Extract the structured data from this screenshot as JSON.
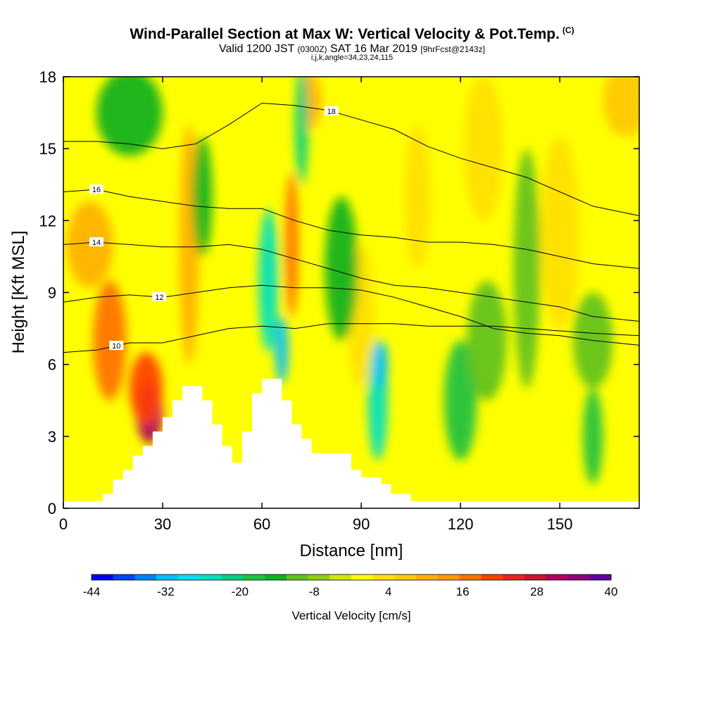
{
  "header": {
    "title": "Wind-Parallel Section at Max W: Vertical Velocity & Pot.Temp.",
    "copyright": "(C)",
    "valid_prefix": "Valid 1200 JST",
    "valid_utc": "(0300Z)",
    "valid_date": "SAT 16 Mar 2019",
    "forecast_info": "[9hrFcst@2143z]",
    "params": "i,j,k,angle=34,23,24,115"
  },
  "chart_data": {
    "type": "heatmap",
    "xlabel": "Distance [nm]",
    "ylabel": "Height [Kft MSL]",
    "xlim": [
      0,
      174
    ],
    "ylim": [
      0,
      18
    ],
    "x_ticks": [
      "0",
      "30",
      "60",
      "90",
      "120",
      "150"
    ],
    "y_ticks": [
      "0",
      "3",
      "6",
      "9",
      "12",
      "15",
      "18"
    ],
    "colorbar": {
      "title": "Vertical Velocity [cm/s]",
      "min": -44,
      "max": 40,
      "step": 4,
      "tick_labels": [
        "-44",
        "-32",
        "-20",
        "-8",
        "4",
        "16",
        "28",
        "40"
      ],
      "colors": [
        "#0000ff",
        "#0040ff",
        "#0080ff",
        "#00c0ff",
        "#00e0f0",
        "#00e0c0",
        "#00d080",
        "#20c040",
        "#10b020",
        "#60c020",
        "#90d010",
        "#d0e800",
        "#ffff00",
        "#ffe000",
        "#ffc800",
        "#ffb000",
        "#ff9800",
        "#ff7000",
        "#ff4000",
        "#f02020",
        "#d01030",
        "#b00060",
        "#900080",
        "#6000a0"
      ]
    },
    "updrafts": [
      {
        "x": 14,
        "y": 7.0,
        "w": 5,
        "h": 2.5,
        "value": 24
      },
      {
        "x": 8,
        "y": 11.0,
        "w": 7,
        "h": 1.8,
        "value": 16
      },
      {
        "x": 26,
        "y": 4.0,
        "w": 4,
        "h": 1.3,
        "value": 40
      },
      {
        "x": 25,
        "y": 5.0,
        "w": 5,
        "h": 1.5,
        "value": 28
      },
      {
        "x": 38,
        "y": 11.0,
        "w": 3,
        "h": 5.0,
        "value": 16
      },
      {
        "x": 69,
        "y": 11.0,
        "w": 2,
        "h": 3.0,
        "value": 24
      },
      {
        "x": 74,
        "y": 17.0,
        "w": 4,
        "h": 1.2,
        "value": 16
      },
      {
        "x": 170,
        "y": 17.0,
        "w": 7,
        "h": 1.5,
        "value": 12
      },
      {
        "x": 150,
        "y": 11.5,
        "w": 6,
        "h": 4.0,
        "value": 8
      },
      {
        "x": 107,
        "y": 13.0,
        "w": 4,
        "h": 3.0,
        "value": 8
      },
      {
        "x": 127,
        "y": 15.0,
        "w": 6,
        "h": 3.0,
        "value": 8
      },
      {
        "x": 90,
        "y": 8.0,
        "w": 4,
        "h": 3.0,
        "value": 8
      }
    ],
    "downdrafts": [
      {
        "x": 20,
        "y": 16.5,
        "w": 10,
        "h": 1.8,
        "value": -12
      },
      {
        "x": 42,
        "y": 13.0,
        "w": 3,
        "h": 2.5,
        "value": -12
      },
      {
        "x": 62,
        "y": 9.5,
        "w": 3,
        "h": 3.0,
        "value": -24
      },
      {
        "x": 66,
        "y": 6.6,
        "w": 2,
        "h": 1.4,
        "value": -32
      },
      {
        "x": 72,
        "y": 16.0,
        "w": 2,
        "h": 2.5,
        "value": -20
      },
      {
        "x": 95,
        "y": 4.5,
        "w": 3,
        "h": 2.5,
        "value": -24
      },
      {
        "x": 96,
        "y": 6.0,
        "w": 2,
        "h": 1.0,
        "value": -32
      },
      {
        "x": 120,
        "y": 4.5,
        "w": 5,
        "h": 2.5,
        "value": -16
      },
      {
        "x": 140,
        "y": 10.0,
        "w": 4,
        "h": 5.0,
        "value": -8
      },
      {
        "x": 160,
        "y": 3.0,
        "w": 3,
        "h": 2.0,
        "value": -16
      },
      {
        "x": 160,
        "y": 7.0,
        "w": 6,
        "h": 2.0,
        "value": -8
      },
      {
        "x": 84,
        "y": 10.0,
        "w": 5,
        "h": 3.0,
        "value": -12
      },
      {
        "x": 128,
        "y": 7.0,
        "w": 6,
        "h": 2.5,
        "value": -8
      }
    ],
    "terrain": [
      [
        0,
        0.3
      ],
      [
        12,
        0.3
      ],
      [
        12,
        0.6
      ],
      [
        15,
        0.6
      ],
      [
        15,
        1.2
      ],
      [
        18,
        1.2
      ],
      [
        18,
        1.6
      ],
      [
        21,
        1.6
      ],
      [
        21,
        2.2
      ],
      [
        24,
        2.2
      ],
      [
        24,
        2.6
      ],
      [
        27,
        2.6
      ],
      [
        27,
        3.2
      ],
      [
        30,
        3.2
      ],
      [
        30,
        3.8
      ],
      [
        33,
        3.8
      ],
      [
        33,
        4.5
      ],
      [
        36,
        4.5
      ],
      [
        36,
        5.1
      ],
      [
        42,
        5.1
      ],
      [
        42,
        4.5
      ],
      [
        45,
        4.5
      ],
      [
        45,
        3.5
      ],
      [
        48,
        3.5
      ],
      [
        48,
        2.6
      ],
      [
        51,
        2.6
      ],
      [
        51,
        1.9
      ],
      [
        54,
        1.9
      ],
      [
        54,
        3.2
      ],
      [
        57,
        3.2
      ],
      [
        57,
        4.8
      ],
      [
        60,
        4.8
      ],
      [
        60,
        5.4
      ],
      [
        66,
        5.4
      ],
      [
        66,
        4.5
      ],
      [
        69,
        4.5
      ],
      [
        69,
        3.5
      ],
      [
        72,
        3.5
      ],
      [
        72,
        2.9
      ],
      [
        75,
        2.9
      ],
      [
        75,
        2.3
      ],
      [
        87,
        2.3
      ],
      [
        87,
        1.6
      ],
      [
        90,
        1.6
      ],
      [
        90,
        1.3
      ],
      [
        96,
        1.3
      ],
      [
        96,
        1.0
      ],
      [
        99,
        1.0
      ],
      [
        99,
        0.6
      ],
      [
        105,
        0.6
      ],
      [
        105,
        0.3
      ],
      [
        174,
        0.3
      ]
    ],
    "isentropes": [
      {
        "value": 10,
        "label": "10",
        "label_x": 16,
        "pts": [
          [
            0,
            6.5
          ],
          [
            10,
            6.6
          ],
          [
            20,
            6.9
          ],
          [
            30,
            6.9
          ],
          [
            40,
            7.2
          ],
          [
            50,
            7.5
          ],
          [
            60,
            7.6
          ],
          [
            70,
            7.5
          ],
          [
            80,
            7.7
          ],
          [
            90,
            7.7
          ],
          [
            100,
            7.7
          ],
          [
            110,
            7.6
          ],
          [
            120,
            7.6
          ],
          [
            130,
            7.6
          ],
          [
            140,
            7.5
          ],
          [
            150,
            7.4
          ],
          [
            160,
            7.3
          ],
          [
            174,
            7.2
          ]
        ]
      },
      {
        "value": 12,
        "label": "12",
        "label_x": 29,
        "pts": [
          [
            0,
            8.6
          ],
          [
            10,
            8.8
          ],
          [
            20,
            8.9
          ],
          [
            30,
            8.8
          ],
          [
            40,
            9.0
          ],
          [
            50,
            9.2
          ],
          [
            60,
            9.3
          ],
          [
            70,
            9.2
          ],
          [
            80,
            9.2
          ],
          [
            90,
            9.1
          ],
          [
            100,
            8.8
          ],
          [
            110,
            8.4
          ],
          [
            120,
            8.0
          ],
          [
            130,
            7.5
          ],
          [
            140,
            7.3
          ],
          [
            150,
            7.2
          ],
          [
            160,
            7.0
          ],
          [
            174,
            6.8
          ]
        ]
      },
      {
        "value": 14,
        "label": "14",
        "label_x": 10,
        "pts": [
          [
            0,
            11.0
          ],
          [
            10,
            11.1
          ],
          [
            20,
            11.0
          ],
          [
            30,
            10.9
          ],
          [
            40,
            10.9
          ],
          [
            50,
            11.0
          ],
          [
            60,
            10.8
          ],
          [
            70,
            10.4
          ],
          [
            80,
            10.0
          ],
          [
            90,
            9.6
          ],
          [
            100,
            9.3
          ],
          [
            110,
            9.2
          ],
          [
            120,
            9.0
          ],
          [
            130,
            8.8
          ],
          [
            140,
            8.6
          ],
          [
            150,
            8.4
          ],
          [
            160,
            8.0
          ],
          [
            174,
            7.8
          ]
        ]
      },
      {
        "value": 16,
        "label": "16",
        "label_x": 10,
        "pts": [
          [
            0,
            13.2
          ],
          [
            10,
            13.3
          ],
          [
            20,
            13.0
          ],
          [
            30,
            12.8
          ],
          [
            40,
            12.6
          ],
          [
            50,
            12.5
          ],
          [
            60,
            12.5
          ],
          [
            70,
            12.0
          ],
          [
            80,
            11.6
          ],
          [
            90,
            11.4
          ],
          [
            100,
            11.3
          ],
          [
            110,
            11.1
          ],
          [
            120,
            11.1
          ],
          [
            130,
            11.0
          ],
          [
            140,
            10.8
          ],
          [
            150,
            10.5
          ],
          [
            160,
            10.2
          ],
          [
            174,
            10.0
          ]
        ]
      },
      {
        "value": 18,
        "label": "18",
        "label_x": 81,
        "pts": [
          [
            0,
            15.3
          ],
          [
            10,
            15.3
          ],
          [
            20,
            15.2
          ],
          [
            30,
            15.0
          ],
          [
            40,
            15.2
          ],
          [
            50,
            16.0
          ],
          [
            60,
            16.9
          ],
          [
            70,
            16.8
          ],
          [
            80,
            16.6
          ],
          [
            90,
            16.2
          ],
          [
            100,
            15.8
          ],
          [
            110,
            15.1
          ],
          [
            120,
            14.6
          ],
          [
            130,
            14.2
          ],
          [
            140,
            13.8
          ],
          [
            150,
            13.2
          ],
          [
            160,
            12.6
          ],
          [
            174,
            12.2
          ]
        ]
      }
    ]
  }
}
